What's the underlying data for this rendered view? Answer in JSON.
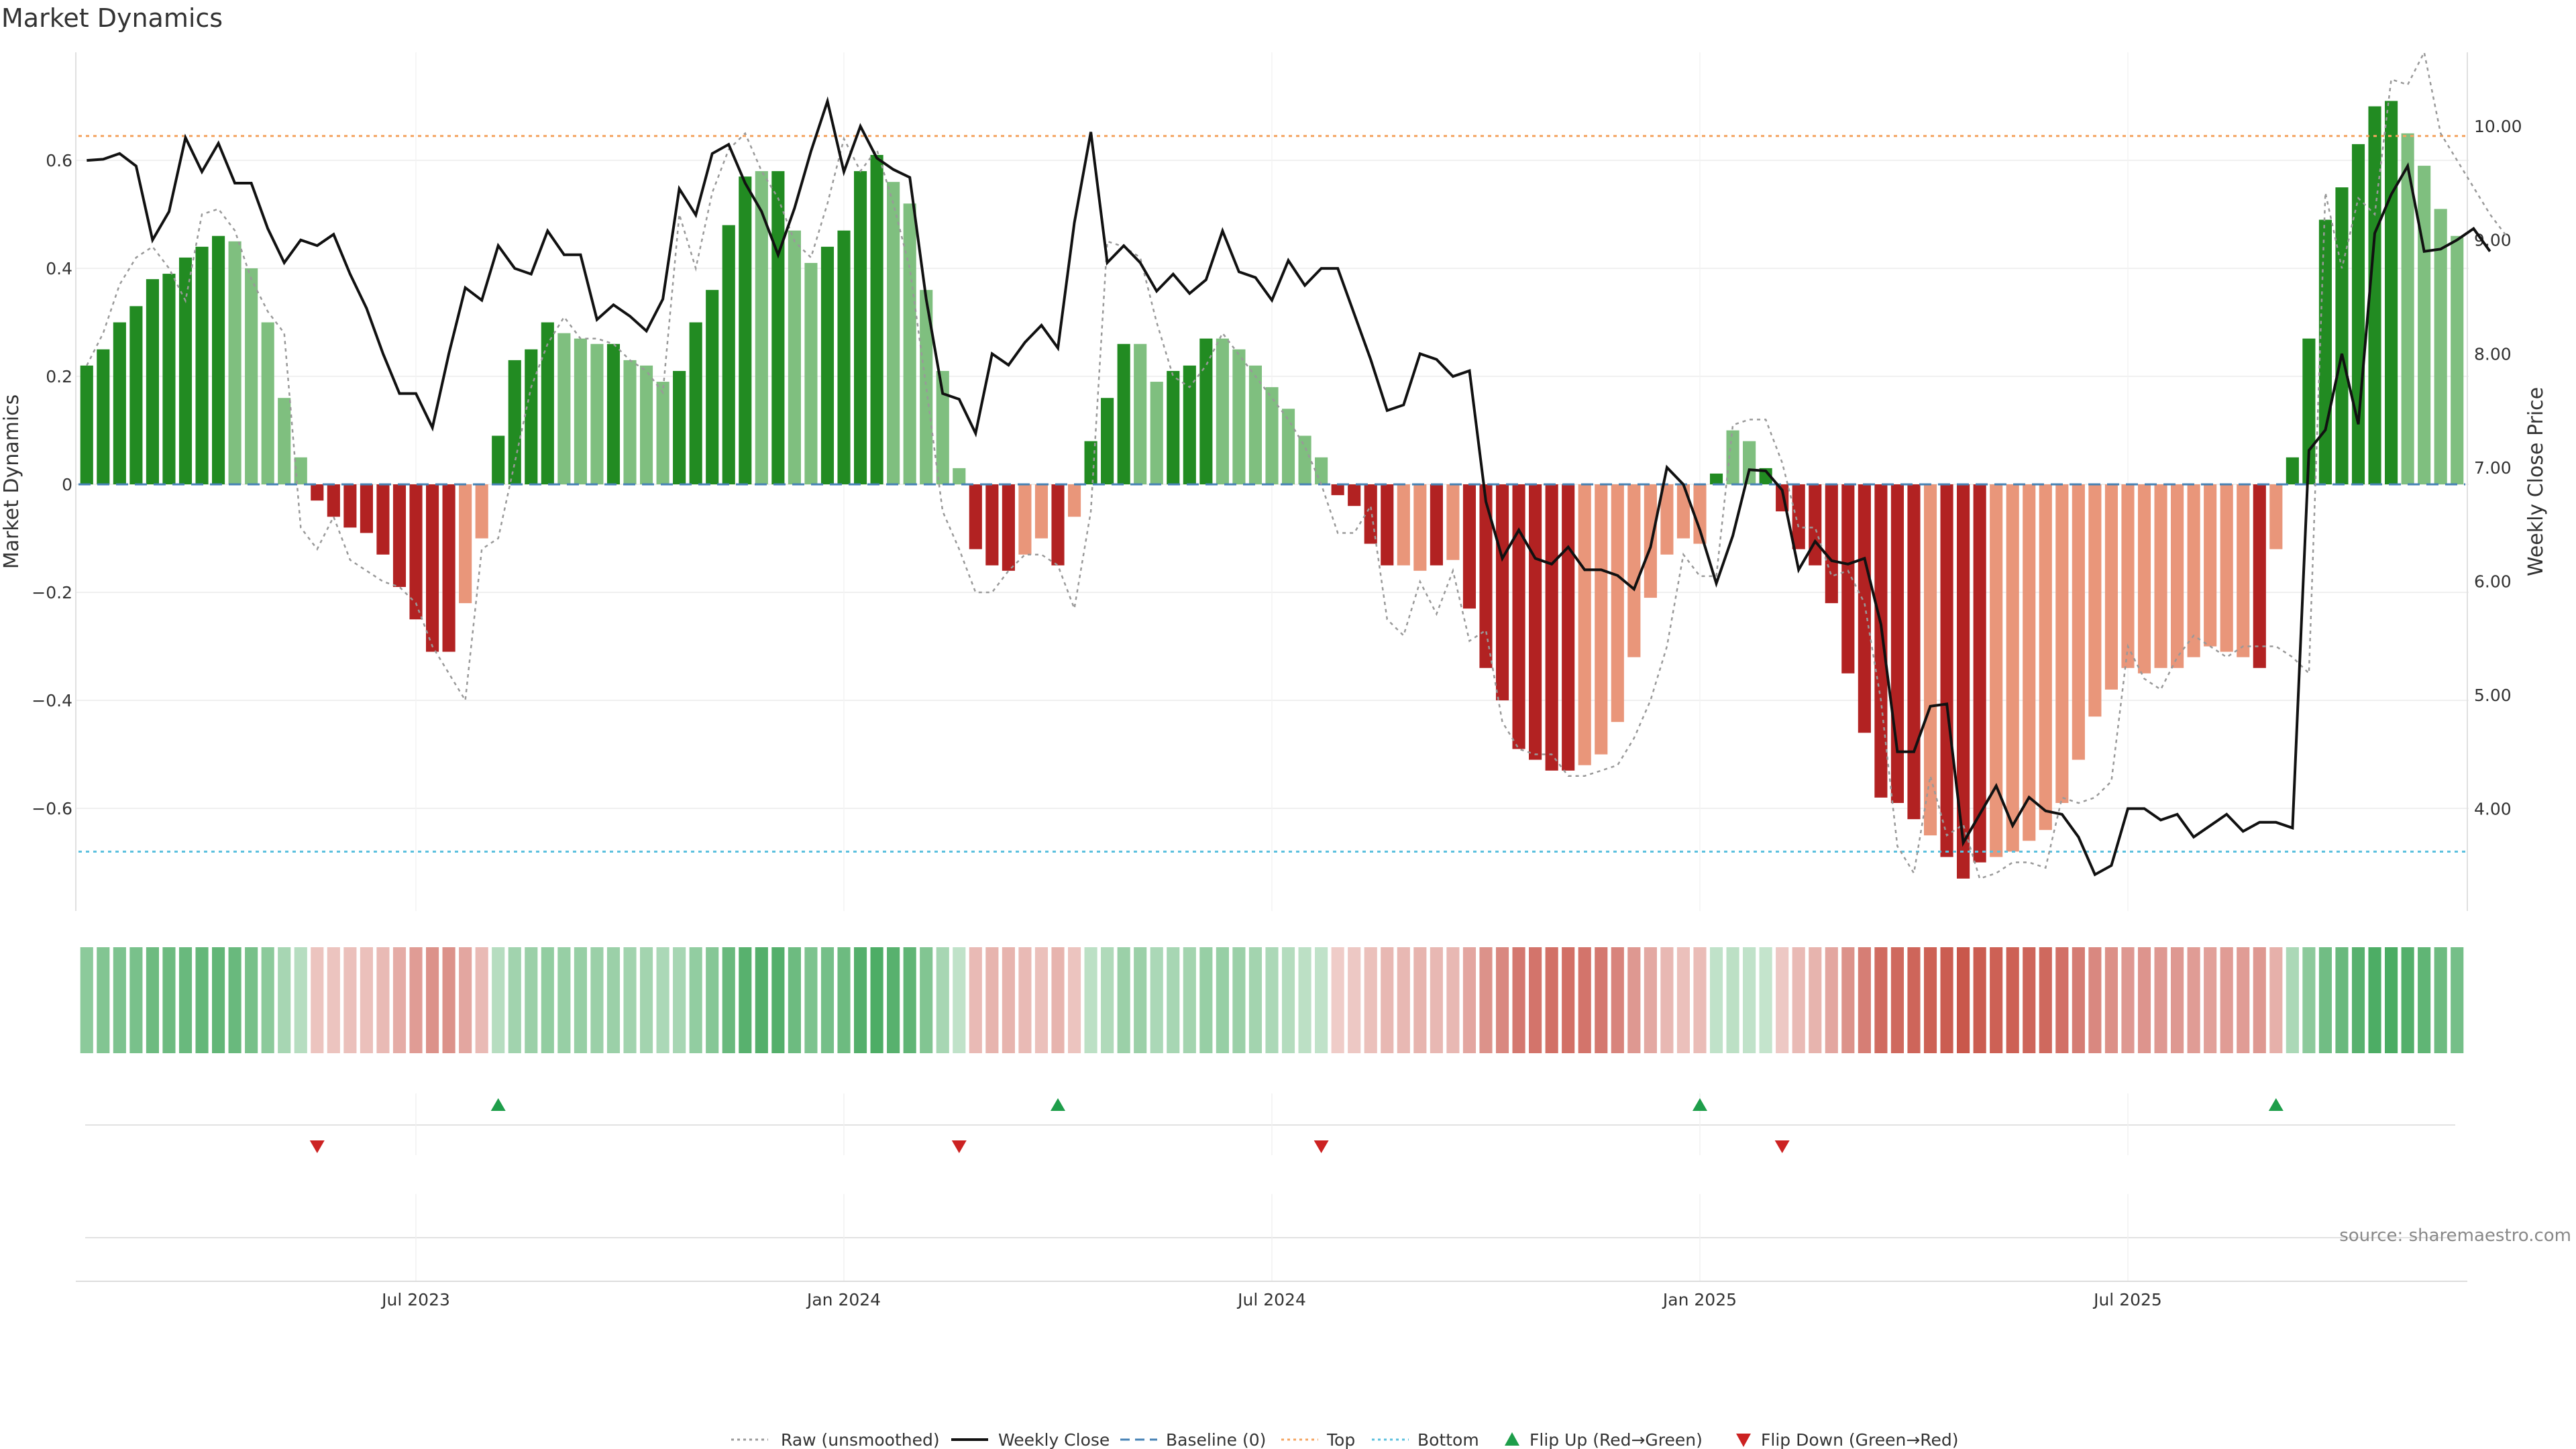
{
  "title": "Market Dynamics",
  "source": "source: sharemaestro.com",
  "colors": {
    "strong_green": "#228B22",
    "light_green": "#7FBF7F",
    "strong_red": "#B22222",
    "light_red": "#E9967A",
    "raw": "#999999",
    "close": "#111111",
    "baseline": "#4682B4",
    "top": "#F4A460",
    "bottom": "#5BC0DE",
    "flip_up": "#1E9E4A",
    "flip_down": "#CC2222"
  },
  "chart_data": {
    "type": "bar",
    "left_axis": {
      "label": "Market Dynamics",
      "ylim": [
        -0.79,
        0.8
      ],
      "ticks": [
        -0.6,
        -0.4,
        -0.2,
        0,
        0.2,
        0.4,
        0.6
      ],
      "tick_labels": [
        "−0.6",
        "−0.4",
        "−0.2",
        "0",
        "0.2",
        "0.4",
        "0.6"
      ]
    },
    "right_axis": {
      "label": "Weekly Close Price",
      "ylim": [
        3.1,
        10.65
      ],
      "ticks": [
        4,
        5,
        6,
        7,
        8,
        9,
        10
      ],
      "tick_labels": [
        "4.00",
        "5.00",
        "6.00",
        "7.00",
        "8.00",
        "9.00",
        "10.00"
      ]
    },
    "x_axis": {
      "tick_labels": [
        "Jul 2023",
        "Jan 2024",
        "Jul 2024",
        "Jan 2025",
        "Jul 2025"
      ],
      "tick_weeks": [
        20,
        46,
        72,
        98,
        124
      ]
    },
    "grid": true,
    "reference_lines": {
      "baseline": 0,
      "top": 0.645,
      "bottom": -0.68
    },
    "series": [
      {
        "name": "Raw (unsmoothed)",
        "type": "line",
        "style": "dotted",
        "axis": "left",
        "values": [
          0.22,
          0.28,
          0.37,
          0.42,
          0.44,
          0.4,
          0.34,
          0.5,
          0.51,
          0.47,
          0.38,
          0.32,
          0.28,
          -0.08,
          -0.12,
          -0.06,
          -0.14,
          -0.16,
          -0.18,
          -0.19,
          -0.22,
          -0.3,
          -0.35,
          -0.4,
          -0.12,
          -0.1,
          0.04,
          0.18,
          0.26,
          0.31,
          0.27,
          0.27,
          0.26,
          0.23,
          0.21,
          0.17,
          0.5,
          0.4,
          0.54,
          0.62,
          0.65,
          0.58,
          0.53,
          0.45,
          0.42,
          0.52,
          0.64,
          0.58,
          0.62,
          0.52,
          0.4,
          0.18,
          -0.05,
          -0.12,
          -0.2,
          -0.2,
          -0.16,
          -0.13,
          -0.13,
          -0.15,
          -0.23,
          -0.05,
          0.45,
          0.44,
          0.42,
          0.3,
          0.2,
          0.18,
          0.22,
          0.28,
          0.24,
          0.2,
          0.16,
          0.12,
          0.07,
          0.0,
          -0.09,
          -0.09,
          -0.04,
          -0.25,
          -0.28,
          -0.18,
          -0.24,
          -0.16,
          -0.29,
          -0.27,
          -0.44,
          -0.49,
          -0.5,
          -0.5,
          -0.54,
          -0.54,
          -0.53,
          -0.52,
          -0.47,
          -0.4,
          -0.3,
          -0.13,
          -0.17,
          -0.17,
          0.11,
          0.12,
          0.12,
          0.04,
          -0.08,
          -0.08,
          -0.17,
          -0.16,
          -0.22,
          -0.4,
          -0.67,
          -0.72,
          -0.54,
          -0.65,
          -0.63,
          -0.73,
          -0.72,
          -0.7,
          -0.7,
          -0.71,
          -0.58,
          -0.59,
          -0.58,
          -0.55,
          -0.3,
          -0.36,
          -0.38,
          -0.32,
          -0.28,
          -0.3,
          -0.32,
          -0.3,
          -0.3,
          -0.3,
          -0.32,
          -0.35,
          0.54,
          0.4,
          0.53,
          0.5,
          0.75,
          0.74,
          0.8,
          0.65,
          0.6,
          0.55,
          0.5,
          0.46
        ]
      },
      {
        "name": "Weekly Close",
        "type": "line",
        "style": "solid",
        "axis": "right",
        "values": [
          9.7,
          9.71,
          9.76,
          9.65,
          9.0,
          9.25,
          9.9,
          9.6,
          9.85,
          9.5,
          9.5,
          9.1,
          8.8,
          9.0,
          8.95,
          9.05,
          8.7,
          8.4,
          8.0,
          7.65,
          7.65,
          7.35,
          8.0,
          8.58,
          8.47,
          8.95,
          8.75,
          8.7,
          9.08,
          8.87,
          8.87,
          8.3,
          8.43,
          8.33,
          8.2,
          8.48,
          9.45,
          9.22,
          9.76,
          9.84,
          9.5,
          9.25,
          8.87,
          9.28,
          9.78,
          10.22,
          9.6,
          10.0,
          9.72,
          9.62,
          9.55,
          8.48,
          7.65,
          7.6,
          7.3,
          8.0,
          7.9,
          8.1,
          8.25,
          8.05,
          9.15,
          9.95,
          8.8,
          8.95,
          8.8,
          8.55,
          8.7,
          8.53,
          8.65,
          9.08,
          8.72,
          8.67,
          8.47,
          8.82,
          8.6,
          8.75,
          8.75,
          8.35,
          7.95,
          7.5,
          7.55,
          8.0,
          7.95,
          7.8,
          7.85,
          6.7,
          6.2,
          6.45,
          6.2,
          6.15,
          6.3,
          6.1,
          6.1,
          6.05,
          5.93,
          6.3,
          7.0,
          6.85,
          6.45,
          5.98,
          6.4,
          6.98,
          6.97,
          6.8,
          6.1,
          6.35,
          6.18,
          6.15,
          6.2,
          5.62,
          4.5,
          4.5,
          4.9,
          4.92,
          3.7,
          3.95,
          4.2,
          3.85,
          4.1,
          3.98,
          3.95,
          3.75,
          3.42,
          3.5,
          4.0,
          4.0,
          3.9,
          3.95,
          3.75,
          3.85,
          3.95,
          3.8,
          3.88,
          3.88,
          3.83,
          7.15,
          7.33,
          8.0,
          7.38,
          9.06,
          9.4,
          9.65,
          8.9,
          8.92,
          9.0,
          9.1,
          8.9
        ]
      },
      {
        "name": "Baseline (0)",
        "type": "line",
        "style": "dashed",
        "axis": "left",
        "value": 0
      },
      {
        "name": "Top",
        "type": "line",
        "style": "dotted",
        "axis": "left",
        "value": 0.645
      },
      {
        "name": "Bottom",
        "type": "line",
        "style": "dotted",
        "axis": "left",
        "value": -0.68
      },
      {
        "name": "Flip Up (Red→Green)",
        "type": "marker",
        "symbol": "triangle-up",
        "weeks": [
          25,
          59,
          98,
          133
        ]
      },
      {
        "name": "Flip Down (Green→Red)",
        "type": "marker",
        "symbol": "triangle-down",
        "weeks": [
          14,
          53,
          75,
          103
        ]
      }
    ],
    "bars": {
      "name": "Market Dynamics",
      "values": [
        0.22,
        0.25,
        0.3,
        0.33,
        0.38,
        0.39,
        0.42,
        0.44,
        0.46,
        0.45,
        0.4,
        0.3,
        0.16,
        0.05,
        -0.03,
        -0.06,
        -0.08,
        -0.09,
        -0.13,
        -0.19,
        -0.25,
        -0.31,
        -0.31,
        -0.22,
        -0.1,
        0.09,
        0.23,
        0.25,
        0.3,
        0.28,
        0.27,
        0.26,
        0.26,
        0.23,
        0.22,
        0.19,
        0.21,
        0.3,
        0.36,
        0.48,
        0.57,
        0.58,
        0.58,
        0.47,
        0.41,
        0.44,
        0.47,
        0.58,
        0.61,
        0.56,
        0.52,
        0.36,
        0.21,
        0.03,
        -0.12,
        -0.15,
        -0.16,
        -0.13,
        -0.1,
        -0.15,
        -0.06,
        0.08,
        0.16,
        0.26,
        0.26,
        0.19,
        0.21,
        0.22,
        0.27,
        0.27,
        0.25,
        0.22,
        0.18,
        0.14,
        0.09,
        0.05,
        -0.02,
        -0.04,
        -0.11,
        -0.15,
        -0.15,
        -0.16,
        -0.15,
        -0.14,
        -0.23,
        -0.34,
        -0.4,
        -0.49,
        -0.51,
        -0.53,
        -0.53,
        -0.52,
        -0.5,
        -0.44,
        -0.32,
        -0.21,
        -0.13,
        -0.1,
        -0.11,
        0.02,
        0.1,
        0.08,
        0.03,
        -0.05,
        -0.12,
        -0.15,
        -0.22,
        -0.35,
        -0.46,
        -0.58,
        -0.59,
        -0.62,
        -0.65,
        -0.69,
        -0.73,
        -0.7,
        -0.69,
        -0.68,
        -0.66,
        -0.64,
        -0.59,
        -0.51,
        -0.43,
        -0.38,
        -0.34,
        -0.35,
        -0.34,
        -0.34,
        -0.32,
        -0.3,
        -0.31,
        -0.32,
        -0.34,
        -0.12,
        0.05,
        0.27,
        0.49,
        0.55,
        0.63,
        0.7,
        0.71,
        0.65,
        0.59,
        0.51,
        0.46
      ],
      "strength": [
        2,
        2,
        2,
        2,
        2,
        2,
        2,
        2,
        2,
        1,
        1,
        1,
        1,
        1,
        2,
        2,
        2,
        2,
        2,
        2,
        2,
        2,
        2,
        1,
        1,
        2,
        2,
        2,
        2,
        1,
        1,
        1,
        2,
        1,
        1,
        1,
        2,
        2,
        2,
        2,
        2,
        1,
        2,
        1,
        1,
        2,
        2,
        2,
        2,
        1,
        1,
        1,
        1,
        1,
        2,
        2,
        2,
        1,
        1,
        2,
        1,
        2,
        2,
        2,
        1,
        1,
        2,
        2,
        2,
        1,
        1,
        1,
        1,
        1,
        1,
        1,
        2,
        2,
        2,
        2,
        1,
        1,
        2,
        1,
        2,
        2,
        2,
        2,
        2,
        2,
        2,
        1,
        1,
        1,
        1,
        1,
        1,
        1,
        1,
        2,
        1,
        1,
        2,
        2,
        2,
        2,
        2,
        2,
        2,
        2,
        2,
        2,
        1,
        2,
        2,
        2,
        1,
        1,
        1,
        1,
        1,
        1,
        1,
        1,
        1,
        1,
        1,
        1,
        1,
        1,
        1,
        1,
        2,
        1,
        2,
        2,
        2,
        2,
        2,
        2,
        2,
        1,
        1,
        1,
        1
      ]
    },
    "heat_strip": {
      "intensity": [
        0.55,
        0.6,
        0.62,
        0.64,
        0.7,
        0.7,
        0.72,
        0.74,
        0.75,
        0.72,
        0.65,
        0.55,
        0.42,
        0.35,
        0.3,
        0.3,
        0.32,
        0.32,
        0.35,
        0.42,
        0.5,
        0.55,
        0.55,
        0.45,
        0.35,
        0.35,
        0.45,
        0.48,
        0.52,
        0.5,
        0.5,
        0.48,
        0.48,
        0.45,
        0.44,
        0.4,
        0.42,
        0.52,
        0.58,
        0.72,
        0.8,
        0.82,
        0.82,
        0.7,
        0.62,
        0.66,
        0.7,
        0.82,
        0.85,
        0.8,
        0.76,
        0.6,
        0.42,
        0.3,
        0.35,
        0.38,
        0.38,
        0.35,
        0.32,
        0.38,
        0.3,
        0.32,
        0.38,
        0.48,
        0.48,
        0.4,
        0.42,
        0.44,
        0.5,
        0.5,
        0.48,
        0.44,
        0.4,
        0.36,
        0.32,
        0.3,
        0.26,
        0.28,
        0.32,
        0.36,
        0.36,
        0.38,
        0.36,
        0.36,
        0.45,
        0.55,
        0.6,
        0.68,
        0.7,
        0.72,
        0.72,
        0.7,
        0.68,
        0.62,
        0.52,
        0.44,
        0.36,
        0.32,
        0.34,
        0.3,
        0.32,
        0.3,
        0.28,
        0.28,
        0.35,
        0.38,
        0.45,
        0.55,
        0.65,
        0.75,
        0.76,
        0.78,
        0.8,
        0.82,
        0.85,
        0.82,
        0.8,
        0.8,
        0.78,
        0.76,
        0.72,
        0.66,
        0.6,
        0.56,
        0.52,
        0.54,
        0.52,
        0.52,
        0.5,
        0.48,
        0.5,
        0.5,
        0.52,
        0.4,
        0.4,
        0.55,
        0.68,
        0.72,
        0.8,
        0.85,
        0.86,
        0.82,
        0.76,
        0.7,
        0.66
      ]
    }
  },
  "legend": {
    "items": [
      {
        "label": "Raw (unsmoothed)",
        "kind": "dotted-line",
        "color": "#999999"
      },
      {
        "label": "Weekly Close",
        "kind": "solid-line",
        "color": "#111111"
      },
      {
        "label": "Baseline (0)",
        "kind": "dashed-line",
        "color": "#4682B4"
      },
      {
        "label": "Top",
        "kind": "dotted-line",
        "color": "#F4A460"
      },
      {
        "label": "Bottom",
        "kind": "dotted-line",
        "color": "#5BC0DE"
      },
      {
        "label": "Flip Up (Red→Green)",
        "kind": "triangle-up",
        "color": "#1E9E4A"
      },
      {
        "label": "Flip Down (Green→Red)",
        "kind": "triangle-down",
        "color": "#CC2222"
      }
    ]
  }
}
